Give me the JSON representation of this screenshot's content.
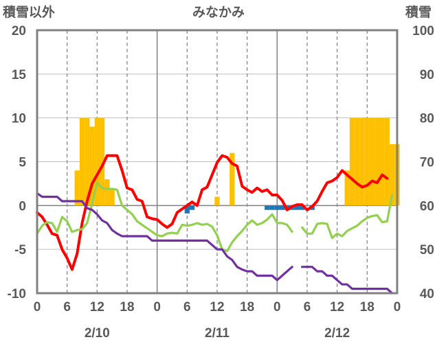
{
  "chart_data": {
    "type": "line",
    "title": "みなかみ",
    "ylabel_left": "積雪以外",
    "ylabel_right": "積雪",
    "x_tick_labels": [
      "0",
      "6",
      "12",
      "18",
      "0",
      "6",
      "12",
      "18",
      "0",
      "6",
      "12",
      "18",
      "0"
    ],
    "date_labels": [
      "2/10",
      "2/11",
      "2/12"
    ],
    "ylim_left": [
      -10,
      20
    ],
    "ylim_right": [
      40,
      100
    ],
    "yticks_left": [
      "20",
      "15",
      "10",
      "5",
      "0",
      "-5",
      "-10"
    ],
    "yticks_right": [
      "100",
      "90",
      "80",
      "70",
      "60",
      "50",
      "40"
    ],
    "xlim_hours": [
      0,
      72
    ],
    "grid": "dashed vertical at 6h-steps, solid day boundaries, horizontal gridlines every 5",
    "series": [
      {
        "type": "bar",
        "axis": "right",
        "color": "#FFC000",
        "points": [
          [
            8,
            68
          ],
          [
            9,
            80
          ],
          [
            10,
            80
          ],
          [
            11,
            78
          ],
          [
            12,
            80
          ],
          [
            13,
            80
          ],
          [
            14,
            66
          ],
          [
            15,
            64
          ],
          [
            36,
            62
          ],
          [
            39,
            72
          ],
          [
            62,
            68
          ],
          [
            63,
            80
          ],
          [
            64,
            80
          ],
          [
            65,
            80
          ],
          [
            66,
            80
          ],
          [
            67,
            80
          ],
          [
            68,
            80
          ],
          [
            69,
            80
          ],
          [
            70,
            80
          ],
          [
            71,
            74
          ],
          [
            72,
            74
          ]
        ]
      },
      {
        "type": "bar",
        "axis": "left",
        "color": "#1F77B4",
        "points": [
          [
            30,
            -0.9
          ],
          [
            31,
            -0.5
          ],
          [
            46,
            -0.5
          ],
          [
            47,
            -0.5
          ],
          [
            48,
            -0.5
          ],
          [
            49,
            -0.5
          ],
          [
            50,
            -0.5
          ],
          [
            51,
            -0.5
          ],
          [
            52,
            -0.5
          ],
          [
            53,
            -0.5
          ],
          [
            55,
            -0.5
          ]
        ]
      },
      {
        "type": "line",
        "axis": "left",
        "color": "#FF0000",
        "points": [
          [
            0,
            -0.8
          ],
          [
            1,
            -1.3
          ],
          [
            2,
            -2.2
          ],
          [
            3,
            -3.2
          ],
          [
            4,
            -3.4
          ],
          [
            5,
            -5
          ],
          [
            6,
            -6
          ],
          [
            7,
            -7.3
          ],
          [
            8,
            -5.5
          ],
          [
            9,
            -2
          ],
          [
            10,
            0.5
          ],
          [
            11,
            2.5
          ],
          [
            12,
            3.5
          ],
          [
            13,
            4.5
          ],
          [
            14,
            5.7
          ],
          [
            15,
            5.7
          ],
          [
            16,
            5.7
          ],
          [
            17,
            4
          ],
          [
            18,
            2
          ],
          [
            19,
            1.8
          ],
          [
            20,
            0.7
          ],
          [
            21,
            0.5
          ],
          [
            22,
            -1.3
          ],
          [
            23,
            -1.5
          ],
          [
            24,
            -1.6
          ],
          [
            25,
            -2.1
          ],
          [
            26,
            -2.5
          ],
          [
            27,
            -2.1
          ],
          [
            28,
            -0.8
          ],
          [
            29,
            -0.4
          ],
          [
            30,
            0
          ],
          [
            31,
            0.4
          ],
          [
            32,
            0
          ],
          [
            33,
            1.8
          ],
          [
            34,
            2.1
          ],
          [
            35,
            3.5
          ],
          [
            36,
            4.9
          ],
          [
            37,
            5.7
          ],
          [
            38,
            5.5
          ],
          [
            39,
            4.8
          ],
          [
            40,
            4.5
          ],
          [
            41,
            2.2
          ],
          [
            42,
            1.8
          ],
          [
            43,
            1.5
          ],
          [
            44,
            2
          ],
          [
            45,
            1.6
          ],
          [
            46,
            1.8
          ],
          [
            47,
            1.2
          ],
          [
            48,
            1.2
          ],
          [
            49,
            0.6
          ],
          [
            50,
            -0.5
          ],
          [
            51,
            -0.1
          ],
          [
            52,
            0.1
          ],
          [
            53,
            0.1
          ],
          [
            54,
            -0.5
          ],
          [
            55,
            -0.1
          ],
          [
            56,
            0.5
          ],
          [
            57,
            1.6
          ],
          [
            58,
            2.6
          ],
          [
            59,
            2.8
          ],
          [
            60,
            3.2
          ],
          [
            61,
            4
          ],
          [
            62,
            3.5
          ],
          [
            63,
            3
          ],
          [
            64,
            2.5
          ],
          [
            65,
            2.1
          ],
          [
            66,
            2.3
          ],
          [
            67,
            2.8
          ],
          [
            68,
            2.6
          ],
          [
            69,
            3.5
          ],
          [
            70,
            3.1
          ]
        ]
      },
      {
        "type": "line",
        "axis": "left",
        "color": "#92D050",
        "points": [
          [
            0,
            -3.2
          ],
          [
            1,
            -2.3
          ],
          [
            2,
            -1.9
          ],
          [
            3,
            -2
          ],
          [
            4,
            -3
          ],
          [
            5,
            -1.3
          ],
          [
            6,
            -1.8
          ],
          [
            7,
            -3
          ],
          [
            8,
            -2.8
          ],
          [
            9,
            -2.7
          ],
          [
            10,
            -2
          ],
          [
            11,
            0.2
          ],
          [
            12,
            2.6
          ],
          [
            13,
            2
          ],
          [
            14,
            1.9
          ],
          [
            15,
            1.9
          ],
          [
            16,
            1.8
          ],
          [
            17,
            0
          ],
          [
            18,
            -0.5
          ],
          [
            19,
            -1
          ],
          [
            20,
            -1.8
          ],
          [
            21,
            -2.2
          ],
          [
            22,
            -2.6
          ],
          [
            23,
            -3
          ],
          [
            24,
            -3.4
          ],
          [
            25,
            -3.5
          ],
          [
            26,
            -3.2
          ],
          [
            27,
            -3.1
          ],
          [
            28,
            -3.2
          ],
          [
            29,
            -2.2
          ],
          [
            30,
            -2.3
          ],
          [
            31,
            -2.2
          ],
          [
            32,
            -2
          ],
          [
            33,
            -2.2
          ],
          [
            34,
            -2.1
          ],
          [
            35,
            -2.4
          ],
          [
            36,
            -3.4
          ],
          [
            37,
            -5
          ],
          [
            38,
            -5.2
          ],
          [
            39,
            -4.2
          ],
          [
            40,
            -3.5
          ],
          [
            41,
            -2.9
          ],
          [
            42,
            -2.2
          ],
          [
            43,
            -1.7
          ],
          [
            44,
            -2.2
          ],
          [
            45,
            -2
          ],
          [
            46,
            -1.6
          ],
          [
            47,
            -1
          ],
          [
            48,
            -2
          ],
          [
            49,
            -2
          ],
          [
            50,
            -2.2
          ],
          [
            51,
            -3
          ],
          [
            53,
            -2.5
          ],
          [
            54,
            -3.2
          ],
          [
            55,
            -3.2
          ],
          [
            56,
            -2.1
          ],
          [
            57,
            -2
          ],
          [
            58,
            -2.1
          ],
          [
            59,
            -3.7
          ],
          [
            60,
            -3.2
          ],
          [
            61,
            -3.5
          ],
          [
            62,
            -2.9
          ],
          [
            63,
            -2.6
          ],
          [
            64,
            -2.3
          ],
          [
            65,
            -1.8
          ],
          [
            66,
            -1.4
          ],
          [
            67,
            -1.2
          ],
          [
            68,
            -1.1
          ],
          [
            69,
            -1.9
          ],
          [
            70,
            -1.8
          ],
          [
            71,
            1.2
          ]
        ]
      },
      {
        "type": "line",
        "axis": "left",
        "color": "#7030A0",
        "points": [
          [
            0,
            1.4
          ],
          [
            1,
            1
          ],
          [
            2,
            1
          ],
          [
            3,
            1
          ],
          [
            4,
            1
          ],
          [
            5,
            0.5
          ],
          [
            6,
            0.5
          ],
          [
            7,
            0.5
          ],
          [
            8,
            0.5
          ],
          [
            9,
            0.5
          ],
          [
            10,
            -0.3
          ],
          [
            11,
            -0.5
          ],
          [
            12,
            -1
          ],
          [
            13,
            -1.7
          ],
          [
            14,
            -2
          ],
          [
            15,
            -2.8
          ],
          [
            16,
            -3.2
          ],
          [
            17,
            -3.5
          ],
          [
            18,
            -3.5
          ],
          [
            19,
            -3.5
          ],
          [
            20,
            -3.5
          ],
          [
            21,
            -3.5
          ],
          [
            22,
            -3.5
          ],
          [
            23,
            -4
          ],
          [
            24,
            -4
          ],
          [
            25,
            -4
          ],
          [
            26,
            -4
          ],
          [
            27,
            -4
          ],
          [
            28,
            -4
          ],
          [
            29,
            -4
          ],
          [
            30,
            -4
          ],
          [
            31,
            -4
          ],
          [
            32,
            -4
          ],
          [
            33,
            -4
          ],
          [
            34,
            -4
          ],
          [
            35,
            -4.5
          ],
          [
            36,
            -5
          ],
          [
            37,
            -5
          ],
          [
            38,
            -5.8
          ],
          [
            39,
            -6.2
          ],
          [
            40,
            -7
          ],
          [
            41,
            -7.3
          ],
          [
            42,
            -7.5
          ],
          [
            43,
            -7.5
          ],
          [
            44,
            -8
          ],
          [
            45,
            -8
          ],
          [
            46,
            -8
          ],
          [
            47,
            -8
          ],
          [
            48,
            -8.5
          ],
          [
            49,
            -8
          ],
          [
            50,
            -7.5
          ],
          [
            51,
            -7
          ],
          [
            53,
            -7
          ],
          [
            54,
            -7
          ],
          [
            55,
            -7
          ],
          [
            56,
            -7.5
          ],
          [
            57,
            -7.5
          ],
          [
            58,
            -8
          ],
          [
            59,
            -8
          ],
          [
            60,
            -8.5
          ],
          [
            61,
            -9
          ],
          [
            62,
            -9
          ],
          [
            63,
            -9.5
          ],
          [
            64,
            -9.5
          ],
          [
            65,
            -9.5
          ],
          [
            66,
            -9.5
          ],
          [
            67,
            -9.5
          ],
          [
            68,
            -9.5
          ],
          [
            69,
            -9.5
          ],
          [
            70,
            -9.5
          ],
          [
            71,
            -10
          ]
        ]
      }
    ]
  }
}
